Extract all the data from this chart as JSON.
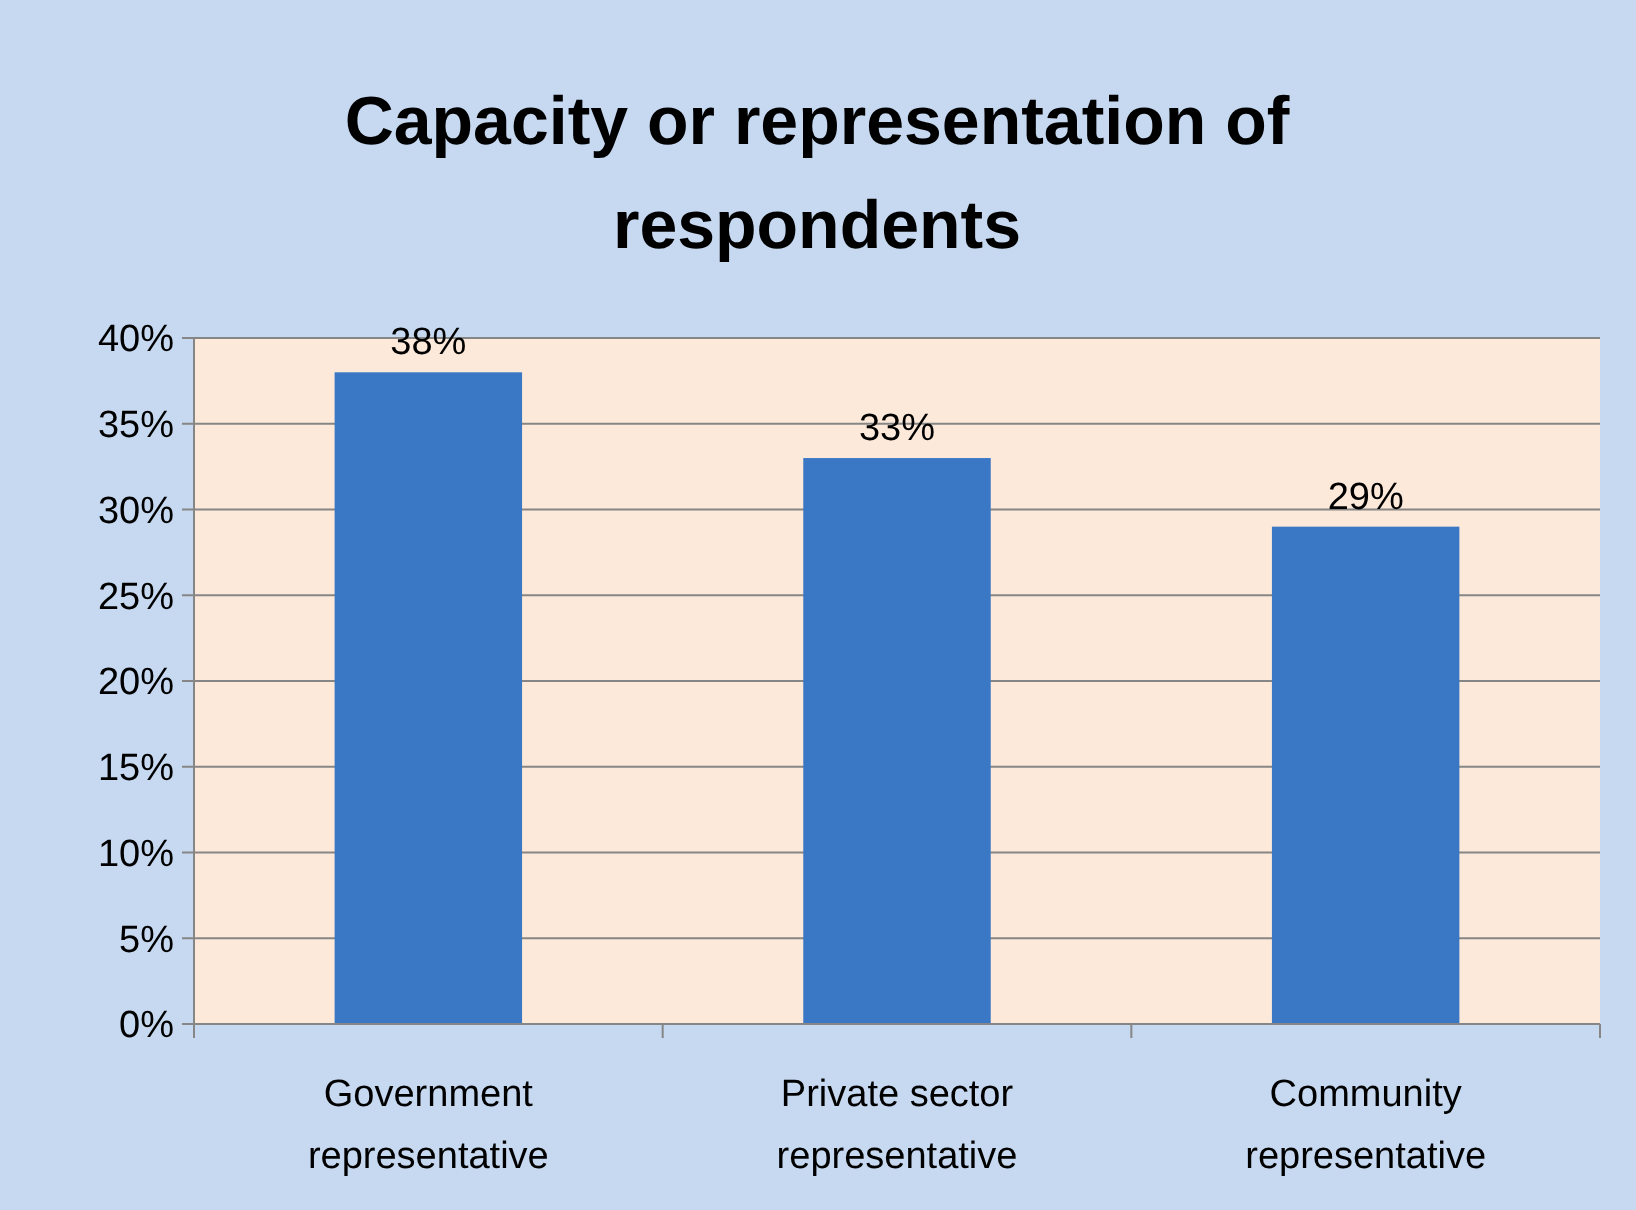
{
  "chart_data": {
    "type": "bar",
    "title": "Capacity or representation of respondents",
    "categories": [
      "Government representative",
      "Private sector representative",
      "Community representative"
    ],
    "values": [
      38,
      33,
      29
    ],
    "color": "#3a78c6",
    "value_labels": [
      "38%",
      "33%",
      "29%"
    ],
    "ylim": [
      0,
      40
    ],
    "yticks": [
      {
        "value": 0,
        "label": "0%"
      },
      {
        "value": 5,
        "label": "5%"
      },
      {
        "value": 10,
        "label": "10%"
      },
      {
        "value": 15,
        "label": "15%"
      },
      {
        "value": 20,
        "label": "20%"
      },
      {
        "value": 25,
        "label": "25%"
      },
      {
        "value": 30,
        "label": "30%"
      },
      {
        "value": 35,
        "label": "35%"
      },
      {
        "value": 40,
        "label": "40%"
      }
    ],
    "grid": "y"
  }
}
